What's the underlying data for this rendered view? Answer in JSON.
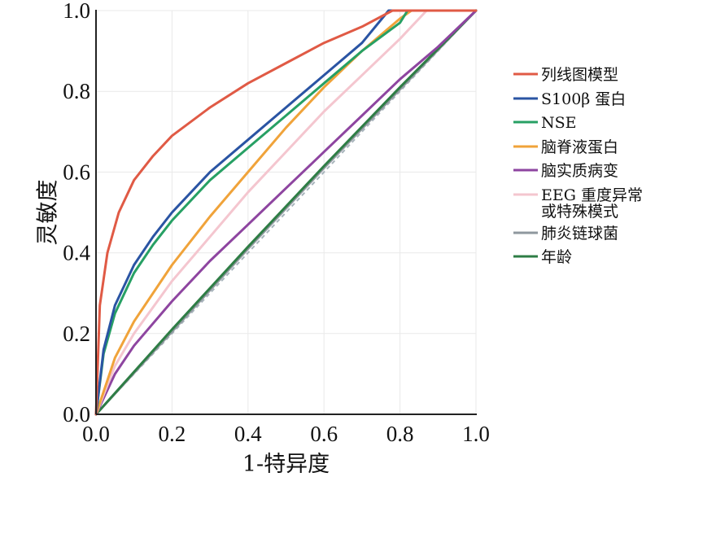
{
  "chart_data": {
    "type": "line",
    "title": "",
    "xlabel": "1-特异度",
    "ylabel": "灵敏度",
    "xlim": [
      0,
      1
    ],
    "ylim": [
      0,
      1
    ],
    "x_ticks": [
      "0.0",
      "0.2",
      "0.4",
      "0.6",
      "0.8",
      "1.0"
    ],
    "y_ticks": [
      "0.0",
      "0.2",
      "0.4",
      "0.6",
      "0.8",
      "1.0"
    ],
    "grid": true,
    "legend_position": "right",
    "reference_line": {
      "x": [
        0,
        1
      ],
      "y": [
        0,
        1
      ],
      "color": "#a8b4bc",
      "style": "dashed"
    },
    "series": [
      {
        "name": "列线图模型",
        "color": "#e05a45",
        "x": [
          0,
          0.01,
          0.03,
          0.06,
          0.1,
          0.15,
          0.2,
          0.3,
          0.4,
          0.5,
          0.6,
          0.7,
          0.78,
          0.8,
          0.9,
          1.0
        ],
        "y": [
          0,
          0.27,
          0.4,
          0.5,
          0.58,
          0.64,
          0.69,
          0.76,
          0.82,
          0.87,
          0.92,
          0.96,
          1.0,
          1.0,
          1.0,
          1.0
        ]
      },
      {
        "name": "S100β 蛋白",
        "color": "#2a54a3",
        "x": [
          0,
          0.02,
          0.05,
          0.1,
          0.15,
          0.2,
          0.3,
          0.4,
          0.5,
          0.6,
          0.7,
          0.77,
          0.8,
          0.9,
          1.0
        ],
        "y": [
          0,
          0.16,
          0.27,
          0.37,
          0.44,
          0.5,
          0.6,
          0.68,
          0.76,
          0.84,
          0.92,
          1.0,
          1.0,
          1.0,
          1.0
        ]
      },
      {
        "name": "NSE",
        "color": "#27a064",
        "x": [
          0,
          0.02,
          0.05,
          0.1,
          0.15,
          0.2,
          0.3,
          0.4,
          0.5,
          0.6,
          0.7,
          0.8,
          0.82,
          0.9,
          1.0
        ],
        "y": [
          0,
          0.15,
          0.25,
          0.35,
          0.42,
          0.48,
          0.58,
          0.66,
          0.74,
          0.82,
          0.9,
          0.97,
          1.0,
          1.0,
          1.0
        ]
      },
      {
        "name": "脑脊液蛋白",
        "color": "#f0a33a",
        "x": [
          0,
          0.05,
          0.1,
          0.2,
          0.3,
          0.4,
          0.5,
          0.6,
          0.7,
          0.8,
          0.83,
          0.9,
          1.0
        ],
        "y": [
          0,
          0.14,
          0.23,
          0.37,
          0.49,
          0.6,
          0.71,
          0.81,
          0.9,
          0.98,
          1.0,
          1.0,
          1.0
        ]
      },
      {
        "name": "脑实质病变",
        "color": "#8e45a0",
        "x": [
          0,
          0.05,
          0.1,
          0.2,
          0.3,
          0.4,
          0.5,
          0.6,
          0.7,
          0.8,
          0.9,
          1.0
        ],
        "y": [
          0,
          0.1,
          0.17,
          0.28,
          0.38,
          0.47,
          0.56,
          0.65,
          0.74,
          0.83,
          0.91,
          1.0
        ]
      },
      {
        "name": "EEG 重度异常或特殊模式",
        "color": "#f4c6cf",
        "x": [
          0,
          0.05,
          0.1,
          0.2,
          0.3,
          0.4,
          0.5,
          0.6,
          0.7,
          0.8,
          0.87,
          0.9,
          1.0
        ],
        "y": [
          0,
          0.12,
          0.2,
          0.33,
          0.44,
          0.55,
          0.65,
          0.75,
          0.84,
          0.93,
          1.0,
          1.0,
          1.0
        ]
      },
      {
        "name": "肺炎链球菌",
        "color": "#8f989e",
        "x": [
          0,
          0.2,
          0.4,
          0.6,
          0.8,
          1.0
        ],
        "y": [
          0,
          0.205,
          0.41,
          0.61,
          0.805,
          1.0
        ]
      },
      {
        "name": "年龄",
        "color": "#2e7d45",
        "x": [
          0,
          0.2,
          0.4,
          0.6,
          0.8,
          1.0
        ],
        "y": [
          0,
          0.21,
          0.415,
          0.615,
          0.81,
          1.0
        ]
      }
    ]
  }
}
